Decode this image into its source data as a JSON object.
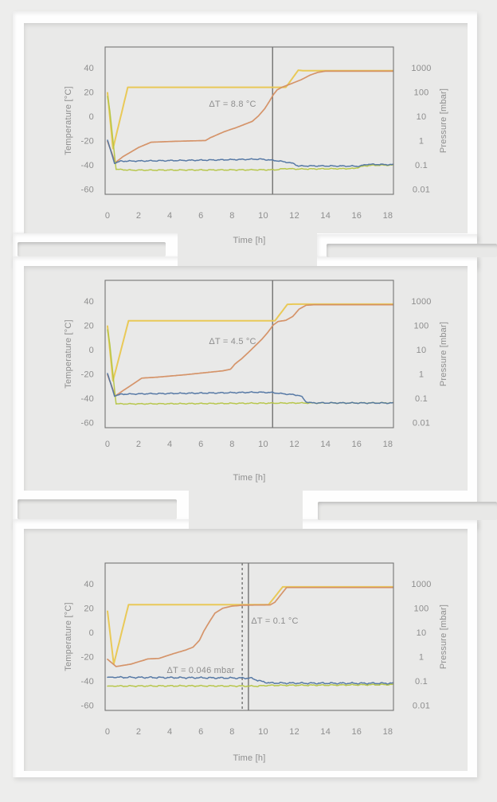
{
  "colors": {
    "page_bg": "#ededec",
    "card_bg": "#e9e9e8",
    "frame_white": "#fefefe",
    "plot_border": "#757575",
    "marker_line": "#5f5f5f",
    "text": "#8e8e8e",
    "series_yellow": "#e9c750",
    "series_orange": "#d48f63",
    "series_blue": "#5074a2",
    "series_green": "#b5c544"
  },
  "chart_data": [
    {
      "type": "line",
      "title": "",
      "xlabel": "Time [h]",
      "ylabel_left": "Temperature [°C]",
      "ylabel_right": "Pressure [mbar]",
      "x_ticks": [
        "0",
        "2",
        "4",
        "6",
        "8",
        "10",
        "12",
        "14",
        "16",
        "18"
      ],
      "left_ticks": [
        "40",
        "20",
        "0",
        "-20",
        "-40",
        "-60"
      ],
      "right_ticks": [
        "1000",
        "100",
        "10",
        "1",
        "0.1",
        "0.01"
      ],
      "xlim": [
        0,
        18.4
      ],
      "ylim_left": [
        -60,
        40
      ],
      "right_axis_scale": "log",
      "annotations": [
        "ΔT = 8.8 °C"
      ],
      "markers": [
        {
          "style": "solid",
          "t": 10.6
        }
      ],
      "series": [
        {
          "name": "yellow",
          "color": "#e9c750",
          "noise": 0,
          "points": [
            [
              0,
              20
            ],
            [
              0.35,
              -26
            ],
            [
              1.3,
              24.5
            ],
            [
              11.45,
              24.5
            ],
            [
              12.25,
              38.6
            ],
            [
              12.55,
              38.2
            ],
            [
              18.5,
              38.2
            ]
          ]
        },
        {
          "name": "orange",
          "color": "#d48f63",
          "noise": 0,
          "points": [
            [
              0,
              -20
            ],
            [
              0.5,
              -37.5
            ],
            [
              1,
              -32.5
            ],
            [
              2,
              -25
            ],
            [
              2.8,
              -20.7
            ],
            [
              4.2,
              -20
            ],
            [
              6.3,
              -19.3
            ],
            [
              6.6,
              -17
            ],
            [
              7.5,
              -12
            ],
            [
              8.3,
              -8.5
            ],
            [
              9,
              -5
            ],
            [
              9.3,
              -3.5
            ],
            [
              9.7,
              1
            ],
            [
              10.1,
              7
            ],
            [
              10.4,
              13
            ],
            [
              10.65,
              18.5
            ],
            [
              10.9,
              22.5
            ],
            [
              11.2,
              24.5
            ],
            [
              11.6,
              26.5
            ],
            [
              12,
              28.5
            ],
            [
              12.45,
              30.8
            ],
            [
              13,
              34.5
            ],
            [
              13.5,
              36.8
            ],
            [
              14,
              37.8
            ],
            [
              18.5,
              37.8
            ]
          ]
        },
        {
          "name": "green",
          "color": "#b5c544",
          "noise": 0.5,
          "points": [
            [
              0,
              17
            ],
            [
              0.15,
              5
            ],
            [
              0.55,
              -43
            ],
            [
              1.5,
              -43.7
            ],
            [
              10.8,
              -43.4
            ],
            [
              11.4,
              -42.4
            ],
            [
              12.2,
              -42.8
            ],
            [
              15.8,
              -42.4
            ],
            [
              16.5,
              -40.2
            ],
            [
              17,
              -39.7
            ],
            [
              18.5,
              -39.5
            ]
          ]
        },
        {
          "name": "blue",
          "color": "#5074a2",
          "noise": 0.55,
          "points": [
            [
              0,
              -19
            ],
            [
              0.45,
              -38
            ],
            [
              0.85,
              -36.3
            ],
            [
              3,
              -36
            ],
            [
              7,
              -35.3
            ],
            [
              9.8,
              -34.6
            ],
            [
              10.8,
              -35.8
            ],
            [
              11.6,
              -37.3
            ],
            [
              12,
              -38.5
            ],
            [
              12.25,
              -40.3
            ],
            [
              13,
              -40.2
            ],
            [
              16.2,
              -40.4
            ],
            [
              16.65,
              -38.9
            ],
            [
              18.5,
              -39.2
            ]
          ]
        }
      ]
    },
    {
      "type": "line",
      "title": "",
      "xlabel": "Time [h]",
      "ylabel_left": "Temperature [°C]",
      "ylabel_right": "Pressure [mbar]",
      "x_ticks": [
        "0",
        "2",
        "4",
        "6",
        "8",
        "10",
        "12",
        "14",
        "16",
        "18"
      ],
      "left_ticks": [
        "40",
        "20",
        "0",
        "-20",
        "-40",
        "-60"
      ],
      "right_ticks": [
        "1000",
        "100",
        "10",
        "1",
        "0.1",
        "0.01"
      ],
      "xlim": [
        0,
        18.4
      ],
      "ylim_left": [
        -60,
        40
      ],
      "right_axis_scale": "log",
      "annotations": [
        "ΔT = 4.5 °C"
      ],
      "markers": [
        {
          "style": "solid",
          "t": 10.6
        }
      ],
      "series": [
        {
          "name": "yellow",
          "color": "#e9c750",
          "noise": 0,
          "points": [
            [
              0,
              20
            ],
            [
              0.35,
              -25
            ],
            [
              1.35,
              24.4
            ],
            [
              10.75,
              24.4
            ],
            [
              11.55,
              37.9
            ],
            [
              11.9,
              38.1
            ],
            [
              18.5,
              38.1
            ]
          ]
        },
        {
          "name": "orange",
          "color": "#d48f63",
          "noise": 0,
          "points": [
            [
              0,
              -20
            ],
            [
              0.5,
              -37.5
            ],
            [
              0.95,
              -33.5
            ],
            [
              1.6,
              -28
            ],
            [
              2.2,
              -22.8
            ],
            [
              3.2,
              -22
            ],
            [
              5,
              -20
            ],
            [
              7.4,
              -16.8
            ],
            [
              7.9,
              -15.5
            ],
            [
              8.2,
              -11
            ],
            [
              8.6,
              -7
            ],
            [
              9.1,
              -1
            ],
            [
              9.5,
              4
            ],
            [
              9.9,
              9
            ],
            [
              10.3,
              15
            ],
            [
              10.65,
              21
            ],
            [
              10.95,
              23.8
            ],
            [
              11.45,
              24.8
            ],
            [
              11.9,
              28
            ],
            [
              12.3,
              34
            ],
            [
              12.75,
              37.2
            ],
            [
              13.3,
              37.6
            ],
            [
              18.5,
              37.6
            ]
          ]
        },
        {
          "name": "green",
          "color": "#b5c544",
          "noise": 0.5,
          "points": [
            [
              0,
              17
            ],
            [
              0.15,
              5
            ],
            [
              0.55,
              -44
            ],
            [
              2,
              -44
            ],
            [
              8,
              -43.6
            ],
            [
              12,
              -43.3
            ],
            [
              18.5,
              -43.2
            ]
          ]
        },
        {
          "name": "blue",
          "color": "#5074a2",
          "noise": 0.55,
          "points": [
            [
              0,
              -19
            ],
            [
              0.45,
              -37.5
            ],
            [
              0.9,
              -36
            ],
            [
              3,
              -35.6
            ],
            [
              7,
              -35
            ],
            [
              9.6,
              -34.4
            ],
            [
              10.6,
              -34.7
            ],
            [
              11.2,
              -35.6
            ],
            [
              11.9,
              -36.4
            ],
            [
              12.3,
              -37
            ],
            [
              12.5,
              -38.5
            ],
            [
              12.75,
              -42.3
            ],
            [
              13.1,
              -43.2
            ],
            [
              18.5,
              -43.3
            ]
          ]
        }
      ]
    },
    {
      "type": "line",
      "title": "",
      "xlabel": "Time [h]",
      "ylabel_left": "Temperature [°C]",
      "ylabel_right": "Pressure [mbar]",
      "x_ticks": [
        "0",
        "2",
        "4",
        "6",
        "8",
        "10",
        "12",
        "14",
        "16",
        "18"
      ],
      "left_ticks": [
        "40",
        "20",
        "0",
        "-20",
        "-40",
        "-60"
      ],
      "right_ticks": [
        "1000",
        "100",
        "10",
        "1",
        "0.1",
        "0.01"
      ],
      "xlim": [
        0,
        18.4
      ],
      "ylim_left": [
        -60,
        40
      ],
      "right_axis_scale": "log",
      "annotations": [
        "ΔT = 0.1 °C",
        "ΔT = 0.046 mbar"
      ],
      "markers": [
        {
          "style": "dashed",
          "t": 8.65
        },
        {
          "style": "solid",
          "t": 9.05
        }
      ],
      "series": [
        {
          "name": "yellow",
          "color": "#e9c750",
          "noise": 0,
          "points": [
            [
              0,
              18
            ],
            [
              0.4,
              -25.5
            ],
            [
              1.35,
              23.5
            ],
            [
              10.35,
              23.5
            ],
            [
              11.25,
              38.1
            ],
            [
              18.5,
              38.1
            ]
          ]
        },
        {
          "name": "orange",
          "color": "#d48f63",
          "noise": 0,
          "points": [
            [
              0,
              -21.5
            ],
            [
              0.55,
              -27.5
            ],
            [
              1.5,
              -25.5
            ],
            [
              2.6,
              -21.2
            ],
            [
              3.3,
              -20.8
            ],
            [
              4.2,
              -17
            ],
            [
              5,
              -14
            ],
            [
              5.5,
              -11.5
            ],
            [
              5.9,
              -6
            ],
            [
              6.2,
              2
            ],
            [
              6.55,
              9.5
            ],
            [
              6.9,
              16.5
            ],
            [
              7.4,
              20.5
            ],
            [
              8,
              22.3
            ],
            [
              8.7,
              23
            ],
            [
              10.45,
              23.3
            ],
            [
              10.75,
              25.5
            ],
            [
              11.5,
              37.6
            ],
            [
              18.5,
              37.6
            ]
          ]
        },
        {
          "name": "green",
          "color": "#b5c544",
          "noise": 0.6,
          "points": [
            [
              0,
              -43.6
            ],
            [
              5,
              -43.4
            ],
            [
              9.6,
              -43.6
            ],
            [
              10.3,
              -43
            ],
            [
              14,
              -42.8
            ],
            [
              18.5,
              -42.3
            ]
          ]
        },
        {
          "name": "blue",
          "color": "#5074a2",
          "noise": 0.8,
          "points": [
            [
              0,
              -36.3
            ],
            [
              4,
              -36.6
            ],
            [
              9.2,
              -37
            ],
            [
              9.9,
              -39.8
            ],
            [
              10.4,
              -41
            ],
            [
              13,
              -41.2
            ],
            [
              18.5,
              -41.3
            ]
          ]
        }
      ]
    }
  ]
}
